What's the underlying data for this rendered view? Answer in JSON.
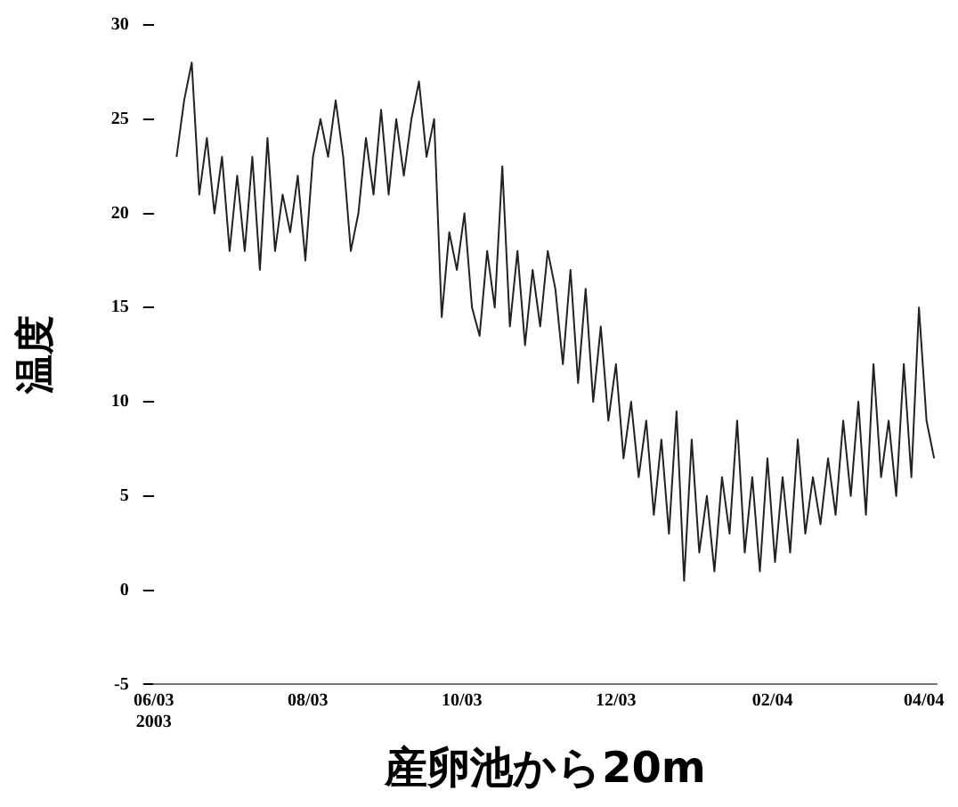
{
  "chart_data": {
    "type": "line",
    "xlabel": "産卵池から20m",
    "ylabel": "温度",
    "x": [
      "2003-06-10",
      "2003-06-13",
      "2003-06-16",
      "2003-06-19",
      "2003-06-22",
      "2003-06-25",
      "2003-06-28",
      "2003-07-01",
      "2003-07-04",
      "2003-07-07",
      "2003-07-10",
      "2003-07-13",
      "2003-07-16",
      "2003-07-19",
      "2003-07-22",
      "2003-07-25",
      "2003-07-28",
      "2003-07-31",
      "2003-08-03",
      "2003-08-06",
      "2003-08-09",
      "2003-08-12",
      "2003-08-15",
      "2003-08-18",
      "2003-08-21",
      "2003-08-24",
      "2003-08-27",
      "2003-08-30",
      "2003-09-02",
      "2003-09-05",
      "2003-09-08",
      "2003-09-11",
      "2003-09-14",
      "2003-09-17",
      "2003-09-20",
      "2003-09-23",
      "2003-09-26",
      "2003-09-29",
      "2003-10-02",
      "2003-10-05",
      "2003-10-08",
      "2003-10-11",
      "2003-10-14",
      "2003-10-17",
      "2003-10-20",
      "2003-10-23",
      "2003-10-26",
      "2003-10-29",
      "2003-11-01",
      "2003-11-04",
      "2003-11-07",
      "2003-11-10",
      "2003-11-13",
      "2003-11-16",
      "2003-11-19",
      "2003-11-22",
      "2003-11-25",
      "2003-11-28",
      "2003-12-01",
      "2003-12-04",
      "2003-12-07",
      "2003-12-10",
      "2003-12-13",
      "2003-12-16",
      "2003-12-19",
      "2003-12-22",
      "2003-12-25",
      "2003-12-28",
      "2003-12-31",
      "2004-01-03",
      "2004-01-06",
      "2004-01-09",
      "2004-01-12",
      "2004-01-15",
      "2004-01-18",
      "2004-01-21",
      "2004-01-24",
      "2004-01-27",
      "2004-01-30",
      "2004-02-02",
      "2004-02-05",
      "2004-02-08",
      "2004-02-11",
      "2004-02-14",
      "2004-02-17",
      "2004-02-20",
      "2004-02-23",
      "2004-02-26",
      "2004-02-29",
      "2004-03-03",
      "2004-03-06",
      "2004-03-09",
      "2004-03-12",
      "2004-03-15",
      "2004-03-18",
      "2004-03-21",
      "2004-03-24",
      "2004-03-27",
      "2004-03-30",
      "2004-04-02",
      "2004-04-05"
    ],
    "series": [
      {
        "color": "#222222",
        "values": [
          23,
          26,
          28,
          21,
          24,
          20,
          23,
          18,
          22,
          18,
          23,
          17,
          24,
          18,
          21,
          19,
          22,
          17.5,
          23,
          25,
          23,
          26,
          23,
          18,
          20,
          24,
          21,
          25.5,
          21,
          25,
          22,
          25,
          27,
          23,
          25,
          14.5,
          19,
          17,
          20,
          15,
          13.5,
          18,
          15,
          22.5,
          14,
          18,
          13,
          17,
          14,
          18,
          16,
          12,
          17,
          11,
          16,
          10,
          14,
          9,
          12,
          7,
          10,
          6,
          9,
          4,
          8,
          3,
          9.5,
          0.5,
          8,
          2,
          5,
          1,
          6,
          3,
          9,
          2,
          6,
          1,
          7,
          1.5,
          6,
          2,
          8,
          3,
          6,
          3.5,
          7,
          4,
          9,
          5,
          10,
          4,
          12,
          6,
          9,
          5,
          12,
          6,
          15,
          9,
          7
        ]
      }
    ],
    "xlim": [
      "2003-06-01",
      "2004-04-06"
    ],
    "xticks": [
      {
        "value": "2003-06-01",
        "label": "06/03\n2003"
      },
      {
        "value": "2003-08-01",
        "label": "08/03"
      },
      {
        "value": "2003-10-01",
        "label": "10/03"
      },
      {
        "value": "2003-12-01",
        "label": "12/03"
      },
      {
        "value": "2004-02-01",
        "label": "02/04"
      },
      {
        "value": "2004-04-01",
        "label": "04/04"
      }
    ],
    "ylim": [
      -5,
      30
    ],
    "yticks": [
      -5,
      0,
      5,
      10,
      15,
      20,
      25,
      30
    ],
    "grid": false,
    "legend": false,
    "marker": "none",
    "line_style": "solid"
  }
}
